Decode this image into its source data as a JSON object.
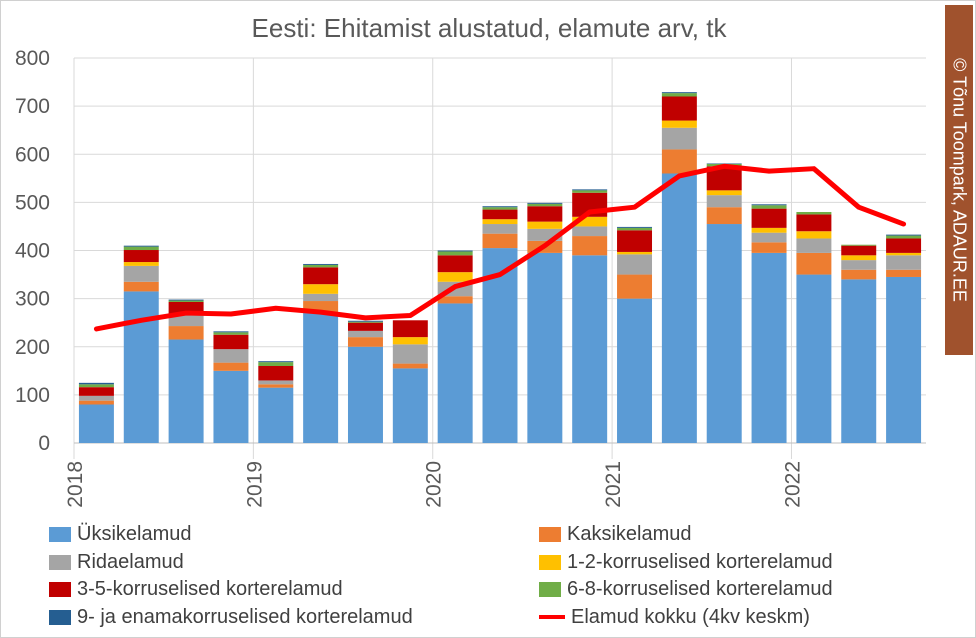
{
  "chart_data": {
    "type": "bar",
    "title": "Eesti: Ehitamist alustatud, elamute arv, tk",
    "ylim": [
      0,
      800
    ],
    "yticks": [
      "0",
      "100",
      "200",
      "300",
      "400",
      "500",
      "600",
      "700",
      "800"
    ],
    "year_labels": [
      "2018",
      "2019",
      "2020",
      "2021",
      "2022"
    ],
    "grid": true,
    "legend_position": "bottom",
    "categories": [
      "2018 Q1",
      "2018 Q2",
      "2018 Q3",
      "2018 Q4",
      "2019 Q1",
      "2019 Q2",
      "2019 Q3",
      "2019 Q4",
      "2020 Q1",
      "2020 Q2",
      "2020 Q3",
      "2020 Q4",
      "2021 Q1",
      "2021 Q2",
      "2021 Q3",
      "2021 Q4",
      "2022 Q1",
      "2022 Q2",
      "2022 Q3"
    ],
    "series": [
      {
        "name": "Üksikelamud",
        "color": "#5b9bd5",
        "values": [
          80,
          315,
          215,
          150,
          115,
          270,
          200,
          155,
          290,
          405,
          395,
          390,
          300,
          560,
          455,
          395,
          350,
          340,
          345
        ]
      },
      {
        "name": "Kaksikelamud",
        "color": "#ed7d31",
        "values": [
          8,
          20,
          28,
          17,
          7,
          25,
          20,
          10,
          15,
          30,
          25,
          40,
          50,
          50,
          35,
          22,
          45,
          20,
          15
        ]
      },
      {
        "name": "Ridaelamud",
        "color": "#a5a5a5",
        "values": [
          10,
          33,
          22,
          28,
          8,
          15,
          13,
          40,
          30,
          20,
          25,
          20,
          42,
          45,
          25,
          20,
          30,
          20,
          30
        ]
      },
      {
        "name": "1-2-korruselised korterelamud",
        "color": "#ffc000",
        "values": [
          0,
          8,
          0,
          0,
          0,
          20,
          0,
          15,
          20,
          10,
          15,
          20,
          5,
          15,
          10,
          10,
          15,
          10,
          5
        ]
      },
      {
        "name": "3-5-korruselised korterelamud",
        "color": "#c00000",
        "values": [
          18,
          25,
          28,
          30,
          30,
          35,
          17,
          35,
          35,
          20,
          32,
          50,
          45,
          50,
          50,
          40,
          35,
          20,
          30
        ]
      },
      {
        "name": "6-8-korruselised korterelamud",
        "color": "#70ad47",
        "values": [
          6,
          7,
          3,
          5,
          8,
          5,
          2,
          0,
          8,
          5,
          5,
          5,
          5,
          7,
          5,
          7,
          5,
          2,
          6
        ]
      },
      {
        "name": "9- ja enamakorruselised korterelamud",
        "color": "#255e91",
        "values": [
          3,
          2,
          2,
          2,
          2,
          2,
          2,
          0,
          2,
          2,
          2,
          2,
          2,
          2,
          1,
          2,
          0,
          0,
          2
        ]
      }
    ],
    "line": {
      "name": "Elamud kokku (4kv keskm)",
      "color": "#ff0000",
      "values": [
        237,
        255,
        270,
        268,
        280,
        272,
        260,
        265,
        325,
        350,
        410,
        480,
        490,
        555,
        575,
        565,
        570,
        490,
        455
      ]
    }
  },
  "copyright": "© Tõnu Toompark, ADAUR.EE"
}
